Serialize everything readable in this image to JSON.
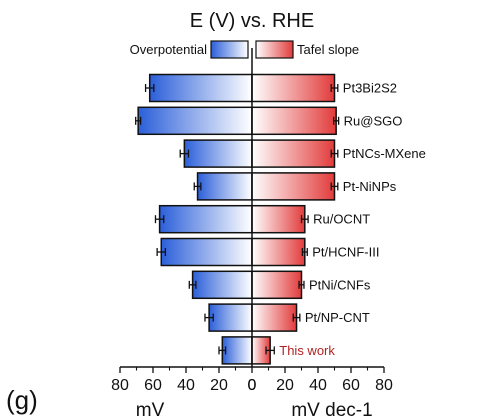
{
  "chart_data": {
    "type": "bar",
    "title": "E (V) vs. RHE",
    "panel_label": "(g)",
    "legend": {
      "placement": "top-center",
      "entries": [
        "Overpotential",
        "Tafel slope"
      ]
    },
    "categories": [
      "Pt3Bi2S2",
      "Ru@SGO",
      "PtNCs-MXene",
      "Pt-NiNPs",
      "Ru/OCNT",
      "Pt/HCNF-III",
      "PtNi/CNFs",
      "Pt/NP-CNT",
      "This work"
    ],
    "series": [
      {
        "name": "Overpotential",
        "values": [
          62,
          69,
          41,
          33,
          56,
          55,
          36,
          26,
          18
        ],
        "errors": [
          2.5,
          1.5,
          2.5,
          2.0,
          2.5,
          2.5,
          2.0,
          2.5,
          2.0
        ]
      },
      {
        "name": "Tafel slope",
        "values": [
          50,
          51,
          50,
          50,
          32,
          32,
          30,
          27,
          11
        ],
        "errors": [
          2.0,
          1.5,
          2.0,
          2.0,
          2.0,
          1.5,
          1.5,
          2.0,
          2.5
        ]
      }
    ],
    "highlight_category": "This work",
    "x_left": {
      "label": "mV",
      "ticks": [
        80,
        60,
        40,
        20,
        0
      ],
      "range": [
        80,
        0
      ]
    },
    "x_right": {
      "label": "mV dec-1",
      "ticks": [
        0,
        20,
        40,
        60,
        80
      ],
      "range": [
        0,
        80
      ]
    },
    "grid": false,
    "colors": {
      "overpotential_outer": "#2b5fd9",
      "overpotential_inner": "#ffffff",
      "tafel_inner": "#ffffff",
      "tafel_outer": "#e23b3b",
      "highlight_text": "#b22222",
      "axis": "#111111"
    }
  }
}
